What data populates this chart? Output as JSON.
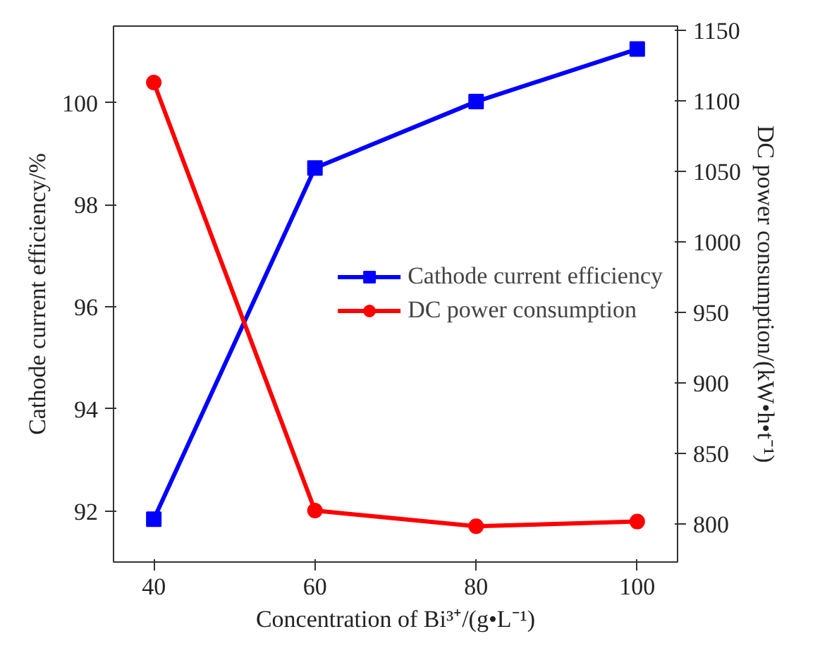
{
  "chart_data": {
    "type": "line",
    "xlabel": "Concentration of Bi³⁺/(g•L⁻¹)",
    "ylabel": "Cathode current efficiency/%",
    "y2label": "DC power consumption/(kW•h•t⁻¹)",
    "x": [
      40,
      60,
      80,
      100
    ],
    "xlim": [
      35,
      105
    ],
    "xticks": [
      40,
      60,
      80,
      100
    ],
    "ylim": [
      91,
      101.5
    ],
    "yticks": [
      92,
      94,
      96,
      98,
      100
    ],
    "y2lim": [
      773,
      1153
    ],
    "y2ticks": [
      800,
      850,
      900,
      950,
      1000,
      1050,
      1100,
      1150
    ],
    "series": [
      {
        "name": "Cathode current efficiency",
        "color": "#0000ff",
        "marker": "square",
        "values": [
          91.84,
          98.72,
          100.02,
          101.05
        ]
      },
      {
        "name": "DC power consumption",
        "color": "#ff0000",
        "marker": "circle",
        "axis": "y2",
        "values": [
          1113,
          809.5,
          798.4,
          801.7
        ]
      }
    ],
    "legend": "right",
    "grid": false
  }
}
